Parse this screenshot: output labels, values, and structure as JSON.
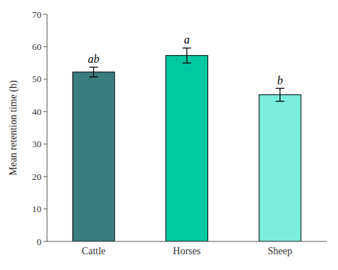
{
  "chart_data": {
    "type": "bar",
    "categories": [
      "Cattle",
      "Horses",
      "Sheep"
    ],
    "values": [
      52.2,
      57.3,
      45.2
    ],
    "errors": [
      1.5,
      2.3,
      2.0
    ],
    "colors": [
      "#3a7d80",
      "#00c8a0",
      "#7aeedd"
    ],
    "annotations": [
      "ab",
      "a",
      "b"
    ],
    "ylabel": "Mean retention time (h)",
    "ylim": [
      0,
      70
    ],
    "yticks": [
      0,
      10,
      20,
      30,
      40,
      50,
      60,
      70
    ],
    "grid": false
  }
}
